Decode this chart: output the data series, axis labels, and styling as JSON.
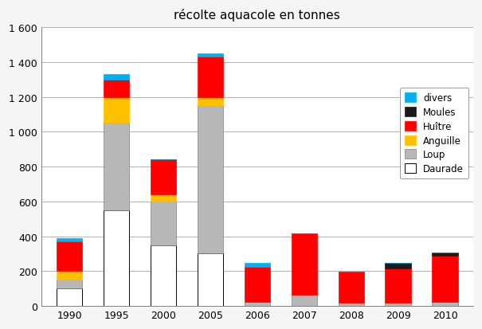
{
  "title": "récolte aquacole en tonnes",
  "years": [
    1990,
    1995,
    2000,
    2005,
    2006,
    2007,
    2008,
    2009,
    2010
  ],
  "categories": [
    "Daurade",
    "Loup",
    "Anguille",
    "Huître",
    "Moules",
    "divers"
  ],
  "colors": {
    "Daurade": "#ffffff",
    "Loup": "#b8b8b8",
    "Anguille": "#ffc000",
    "Huître": "#ff0000",
    "Moules": "#1a1a1a",
    "divers": "#00b0f0"
  },
  "data": {
    "Daurade": [
      100,
      550,
      350,
      300,
      0,
      0,
      0,
      0,
      0
    ],
    "Loup": [
      50,
      500,
      250,
      850,
      25,
      65,
      20,
      20,
      25
    ],
    "Anguille": [
      50,
      150,
      40,
      50,
      0,
      0,
      0,
      0,
      0
    ],
    "Huître": [
      170,
      100,
      200,
      230,
      200,
      350,
      175,
      195,
      265
    ],
    "Moules": [
      0,
      0,
      0,
      0,
      0,
      0,
      0,
      30,
      15
    ],
    "divers": [
      20,
      30,
      0,
      20,
      20,
      0,
      0,
      0,
      0
    ]
  },
  "ylim": [
    0,
    1600
  ],
  "yticks": [
    0,
    200,
    400,
    600,
    800,
    1000,
    1200,
    1400,
    1600
  ],
  "ytick_labels": [
    "0",
    "200",
    "400",
    "600",
    "800",
    "1 000",
    "1 200",
    "1 400",
    "1 600"
  ],
  "bar_width": 0.55,
  "figsize": [
    6.05,
    4.14
  ],
  "dpi": 100,
  "bg_color": "#f5f5f5",
  "plot_bg": "#ffffff",
  "legend_order": [
    "divers",
    "Moules",
    "Huître",
    "Anguille",
    "Loup",
    "Daurade"
  ]
}
